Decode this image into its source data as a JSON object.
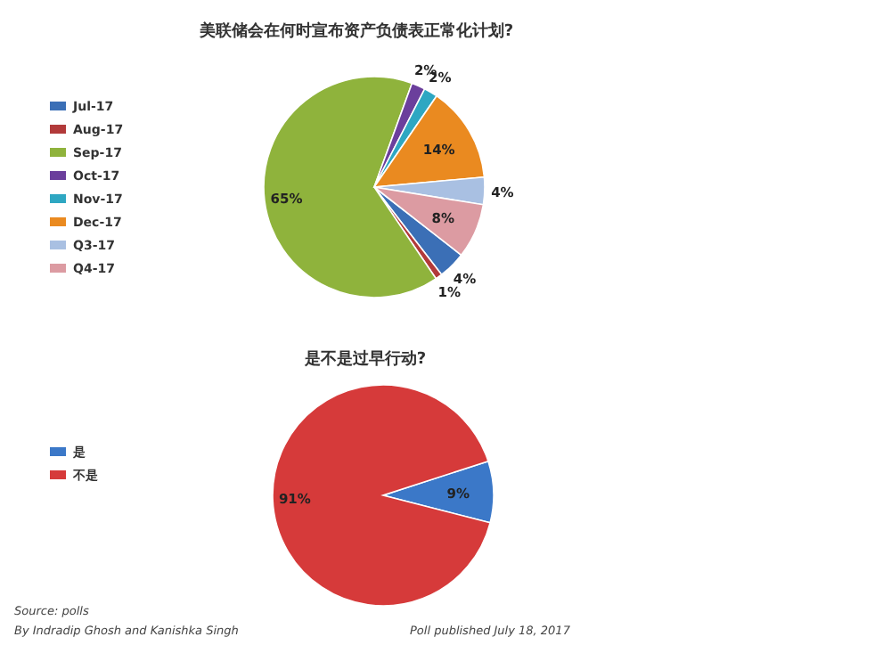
{
  "chart_data": [
    {
      "type": "pie",
      "title": "美联储会在何时宣布资产负债表正常化计划?",
      "categories": [
        "Jul-17",
        "Aug-17",
        "Sep-17",
        "Oct-17",
        "Nov-17",
        "Dec-17",
        "Q3-17",
        "Q4-17"
      ],
      "values": [
        4,
        1,
        65,
        2,
        2,
        14,
        4,
        8
      ],
      "value_labels": [
        "4%",
        "1%",
        "65%",
        "2%",
        "2%",
        "14%",
        "4%",
        "8%"
      ],
      "colors": [
        "#3b6fb6",
        "#b23a3a",
        "#8fb33c",
        "#6b3f9c",
        "#2ea7c2",
        "#ea8a20",
        "#a9c0e2",
        "#dc9ba2"
      ],
      "legend": "left"
    },
    {
      "type": "pie",
      "title": "是不是过早行动?",
      "categories": [
        "是",
        "不是"
      ],
      "values": [
        9,
        91
      ],
      "value_labels": [
        "9%",
        "91%"
      ],
      "colors": [
        "#3b78c8",
        "#d63a3a"
      ],
      "legend": "left",
      "annotations": [
        "Source: polls",
        "By Indradip Ghosh and Kanishka Singh",
        "Poll published July 18, 2017"
      ]
    }
  ]
}
